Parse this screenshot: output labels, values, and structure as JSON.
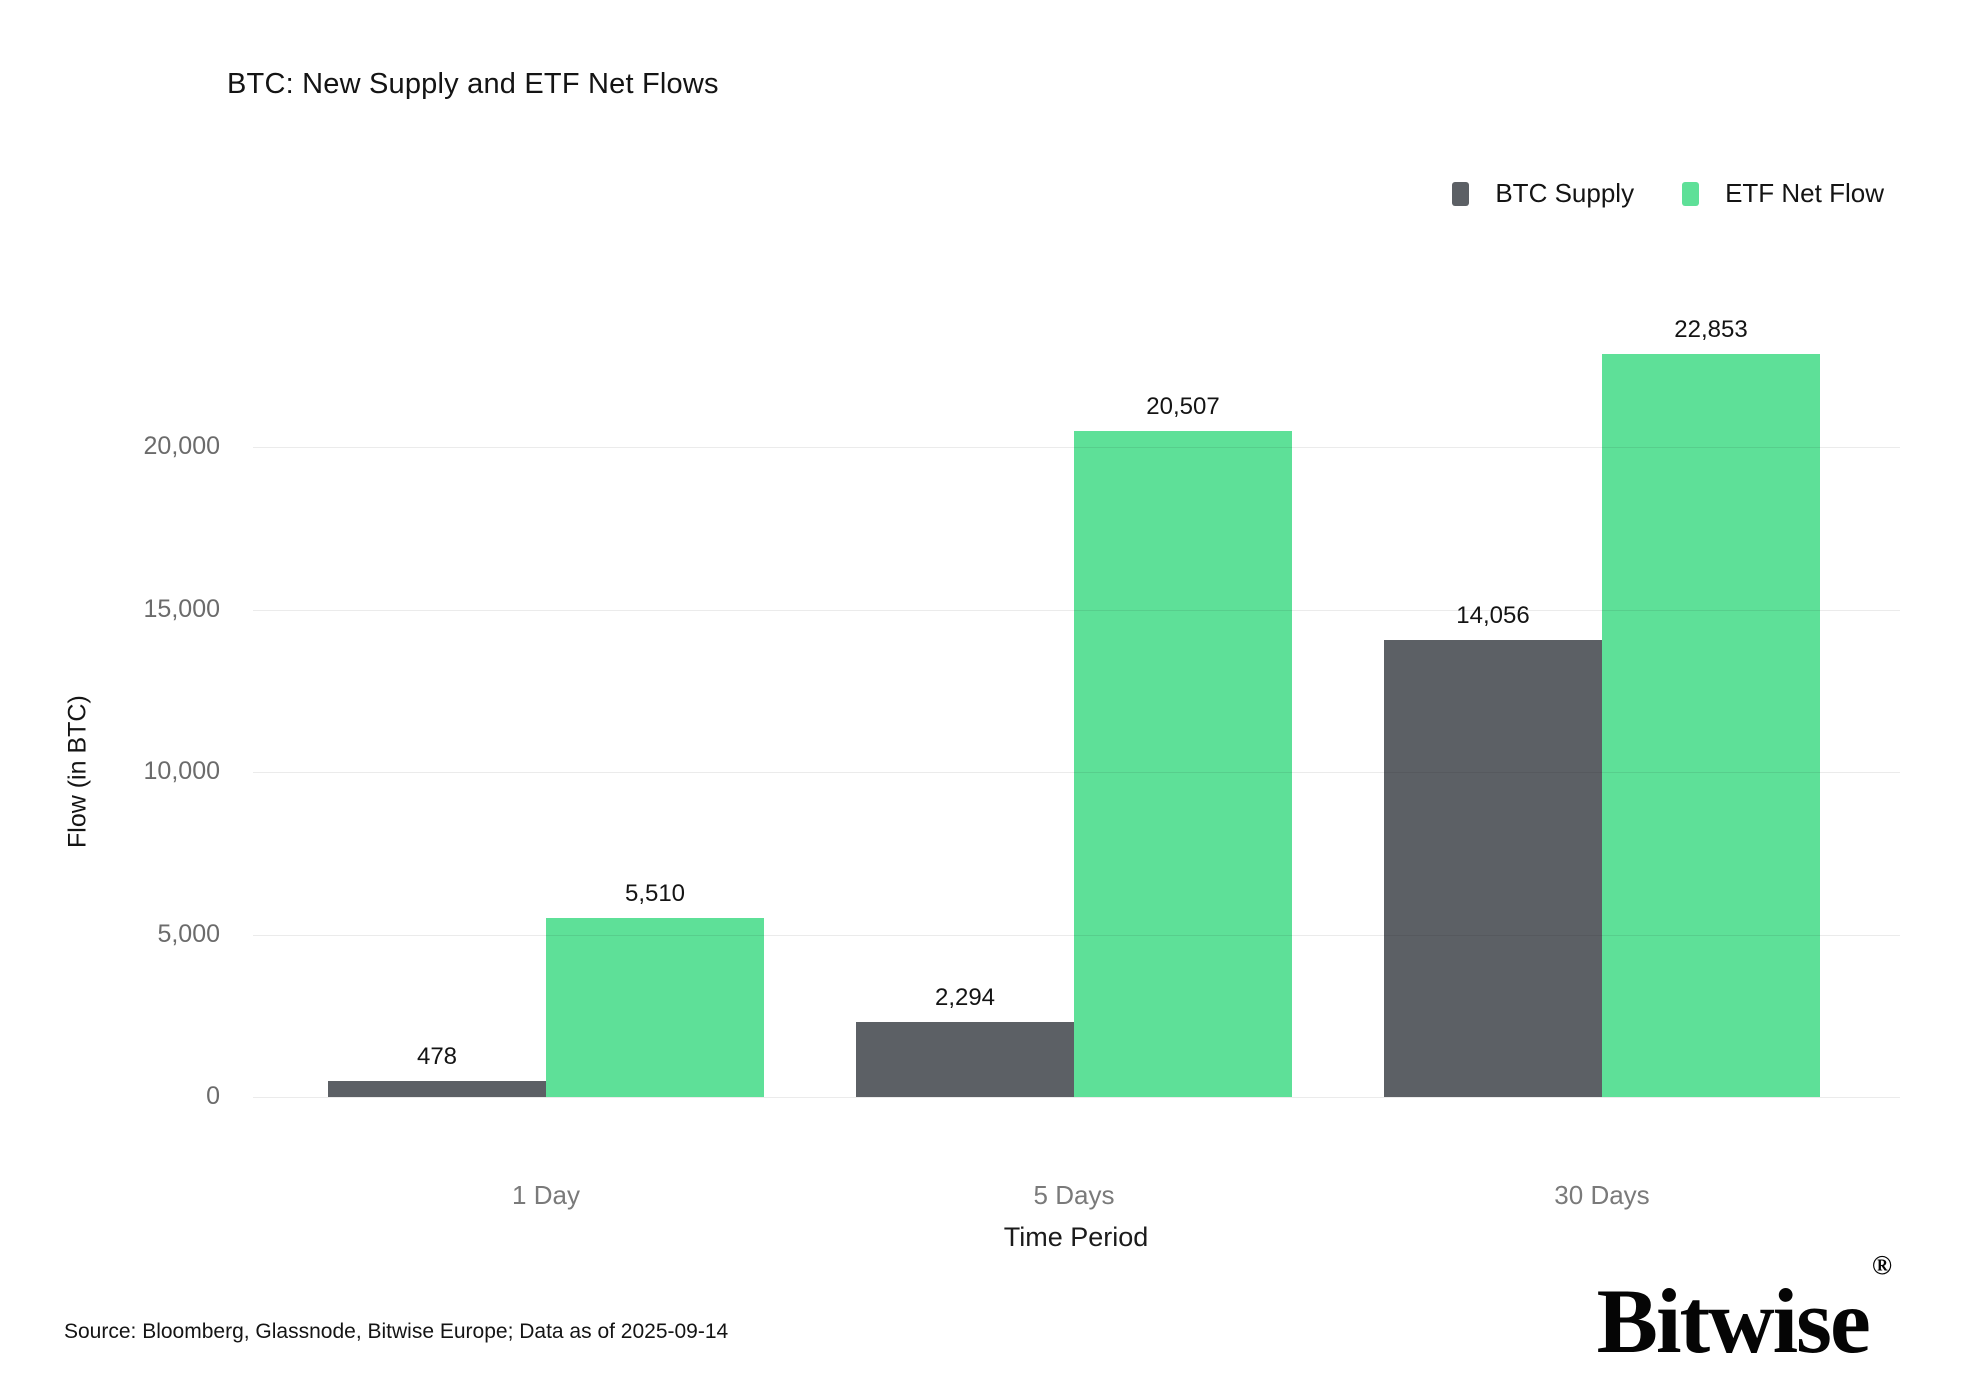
{
  "title": "BTC: New Supply and ETF Net Flows",
  "legend": {
    "items": [
      {
        "label": "BTC Supply",
        "color": "#5C6065"
      },
      {
        "label": "ETF Net Flow",
        "color": "#5EE098"
      }
    ]
  },
  "axes": {
    "ylabel": "Flow (in BTC)",
    "xlabel": "Time Period"
  },
  "footer": {
    "source": "Source: Bloomberg, Glassnode, Bitwise Europe; Data as of 2025-09-14",
    "brand": "Bitwise",
    "brand_mark": "®"
  },
  "colors": {
    "background": "#ffffff",
    "btc_supply": "#5C6065",
    "etf_net_flow": "#5EE098",
    "gridline": "#e9e9e9",
    "tick_text": "#6b6b6b",
    "category_text": "#7a7a7a",
    "label_text": "#141414"
  },
  "chart_data": {
    "type": "bar",
    "title": "BTC: New Supply and ETF Net Flows",
    "categories": [
      "1 Day",
      "5 Days",
      "30 Days"
    ],
    "series": [
      {
        "name": "BTC Supply",
        "color": "#5C6065",
        "values": [
          478,
          2294,
          14056
        ]
      },
      {
        "name": "ETF Net Flow",
        "color": "#5EE098",
        "values": [
          5510,
          20507,
          22853
        ]
      }
    ],
    "value_labels": [
      "478",
      "5,510",
      "2,294",
      "20,507",
      "14,056",
      "22,853"
    ],
    "xlabel": "Time Period",
    "ylabel": "Flow (in BTC)",
    "ylim": [
      0,
      23500
    ],
    "yticks": [
      0,
      5000,
      10000,
      15000,
      20000
    ],
    "ytick_labels": [
      "0",
      "5,000",
      "10,000",
      "15,000",
      "20,000"
    ],
    "grid": "horizontal",
    "legend_position": "top-right",
    "bar_value_labels": true
  }
}
